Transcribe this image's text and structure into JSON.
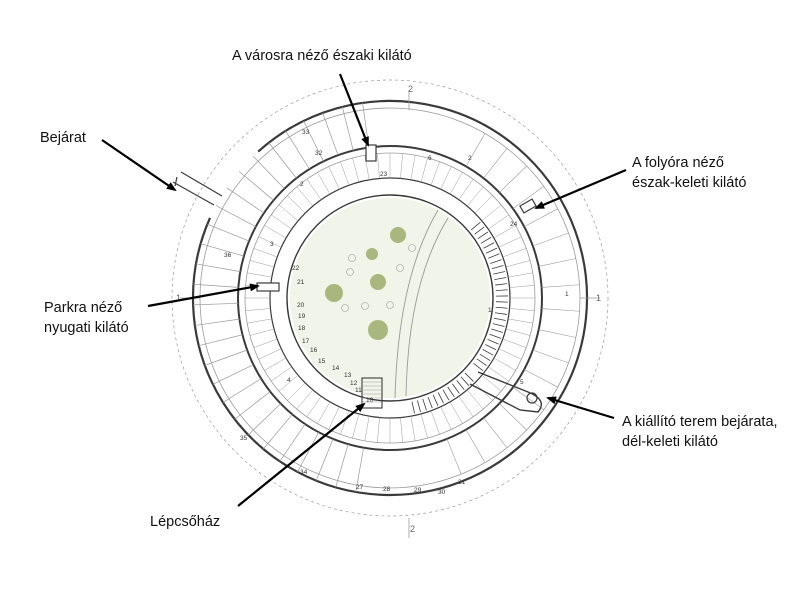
{
  "labels": {
    "north": "A városra néző északi kilátó",
    "northeast_line1": "A folyóra néző",
    "northeast_line2": "észak-keleti kilátó",
    "entrance": "Bejárat",
    "west_line1": "Parkra néző",
    "west_line2": "nyugati kilátó",
    "southeast_line1": "A kiállító terem bejárata,",
    "southeast_line2": "dél-keleti kilátó",
    "stairs": "Lépcsőház"
  },
  "plan": {
    "room_numbers": [
      "33",
      "32",
      "2",
      "3",
      "36",
      "22",
      "21",
      "20",
      "19",
      "18",
      "17",
      "16",
      "15",
      "14",
      "13",
      "12",
      "11",
      "10",
      "23",
      "24",
      "5",
      "1",
      "4",
      "35",
      "34",
      "27",
      "28",
      "29",
      "30",
      "31",
      "2",
      "1",
      "6"
    ],
    "section_marks": [
      "2",
      "2",
      "1",
      "1"
    ]
  },
  "colors": {
    "line": "#3a3a3a",
    "light_line": "#9a9a9a",
    "courtyard": "#f1f4e8",
    "tree": "#8fa35a"
  }
}
